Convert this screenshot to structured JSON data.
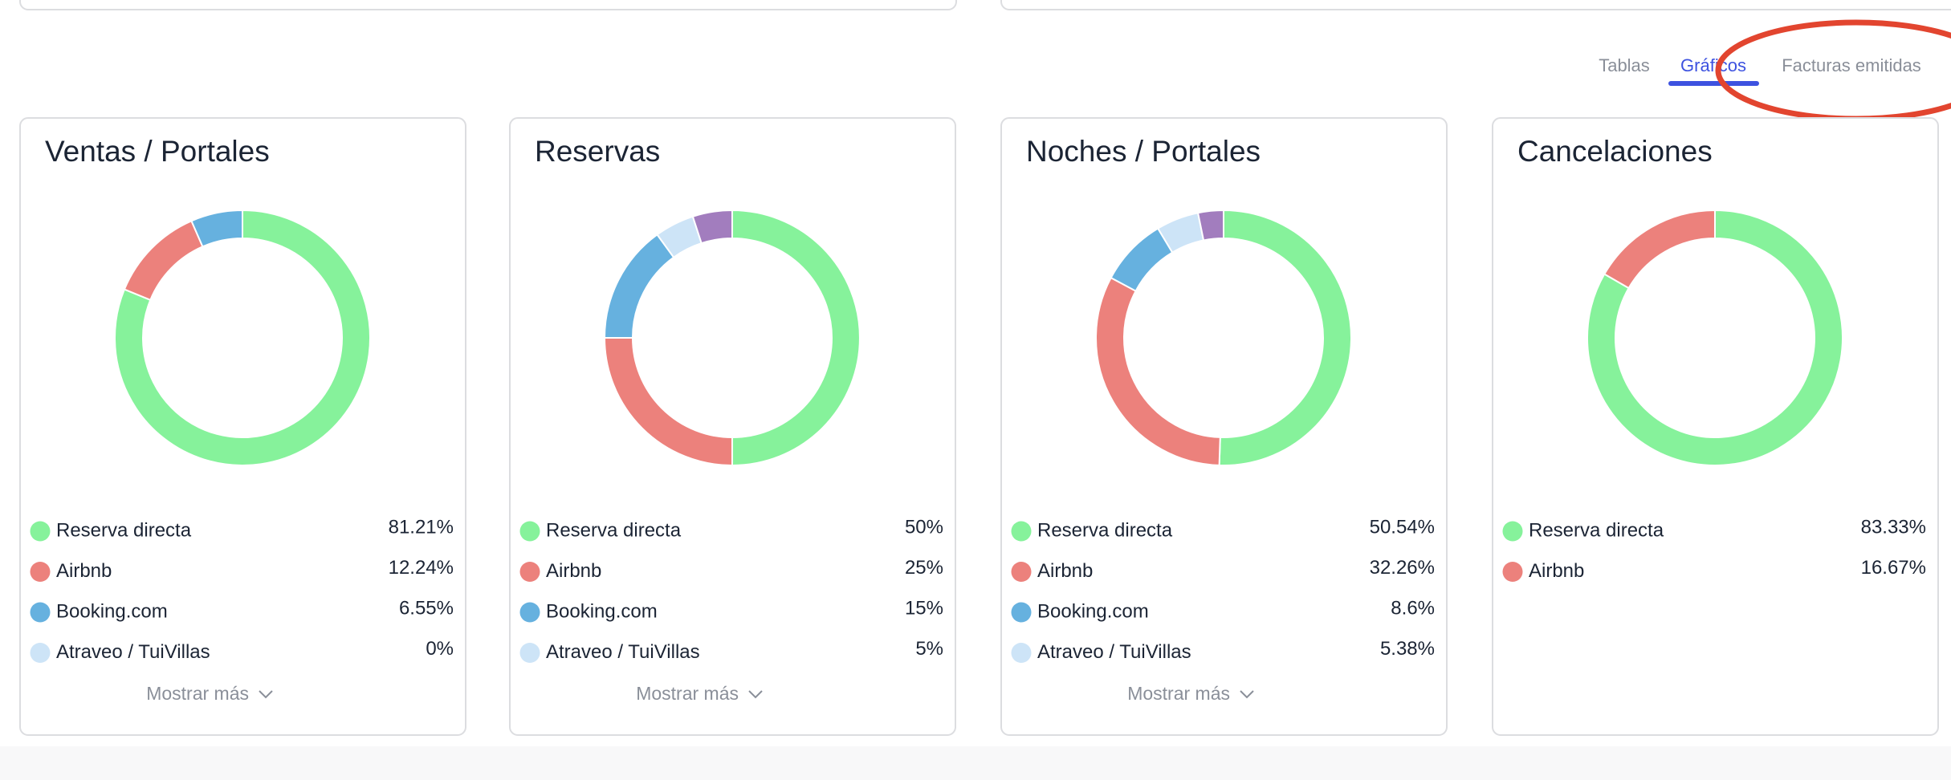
{
  "tabs": [
    "Tablas",
    "Gráficos",
    "Facturas emitidas"
  ],
  "show_more": "Mostrar más",
  "chart_data": [
    {
      "type": "pie",
      "title": "Ventas / Portales",
      "categories": [
        "Reserva directa",
        "Airbnb",
        "Booking.com",
        "Atraveo / TuiVillas"
      ],
      "values": [
        81.21,
        12.24,
        6.55,
        0
      ],
      "value_labels": [
        "81.21%",
        "12.24%",
        "6.55%",
        "0%"
      ],
      "colors": [
        "#86f29b",
        "#ec817c",
        "#66b1df",
        "#cde4f7"
      ]
    },
    {
      "type": "pie",
      "title": "Reservas",
      "categories": [
        "Reserva directa",
        "Airbnb",
        "Booking.com",
        "Atraveo / TuiVillas",
        null
      ],
      "values": [
        50,
        25,
        15,
        5,
        5
      ],
      "value_labels": [
        "50%",
        "25%",
        "15%",
        "5%",
        null
      ],
      "colors": [
        "#86f29b",
        "#ec817c",
        "#66b1df",
        "#cde4f7",
        "#a27dbe"
      ]
    },
    {
      "type": "pie",
      "title": "Noches / Portales",
      "categories": [
        "Reserva directa",
        "Airbnb",
        "Booking.com",
        "Atraveo / TuiVillas",
        null
      ],
      "values": [
        50.54,
        32.26,
        8.6,
        5.38,
        3.22
      ],
      "value_labels": [
        "50.54%",
        "32.26%",
        "8.6%",
        "5.38%",
        null
      ],
      "colors": [
        "#86f29b",
        "#ec817c",
        "#66b1df",
        "#cde4f7",
        "#a27dbe"
      ]
    },
    {
      "type": "pie",
      "title": "Cancelaciones",
      "categories": [
        "Reserva directa",
        "Airbnb"
      ],
      "values": [
        83.33,
        16.67
      ],
      "value_labels": [
        "83.33%",
        "16.67%"
      ],
      "colors": [
        "#86f29b",
        "#ec817c"
      ]
    }
  ]
}
